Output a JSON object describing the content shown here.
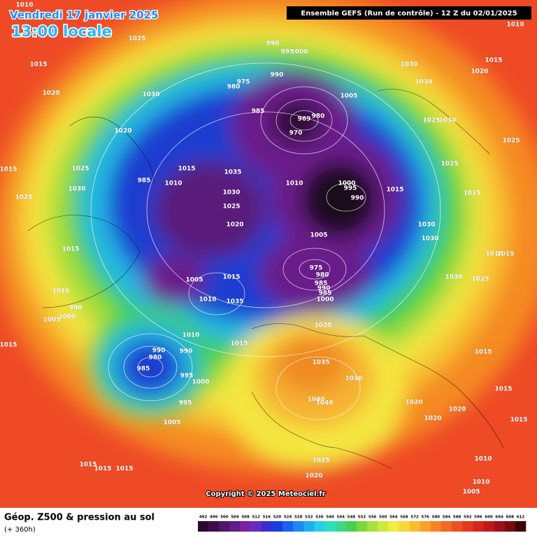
{
  "header": {
    "date": "Vendredi 17 janvier 2025",
    "time": "13:00 locale",
    "run": "Ensemble GEFS  (Run de contrôle)  -  12 Z du 02/01/2025"
  },
  "map": {
    "isobar_labels": [
      1010,
      1010,
      1025,
      1015,
      1020,
      1030,
      990,
      995,
      1000,
      1030,
      1015,
      1020,
      975,
      980,
      990,
      1030,
      1005,
      985,
      969,
      980,
      970,
      1025,
      1030,
      1020,
      1025,
      1015,
      1025,
      985,
      1010,
      1015,
      1035,
      1010,
      1000,
      995,
      990,
      1015,
      1025,
      1030,
      1030,
      1025,
      1025,
      1025,
      1030,
      1020,
      1030,
      1005,
      1010,
      1015,
      1015,
      975,
      980,
      1005,
      1015,
      1030,
      1025,
      985,
      990,
      1010,
      985,
      1000,
      1010,
      1035,
      990,
      1005,
      1000,
      1020,
      1010,
      1015,
      1015,
      990,
      990,
      1015,
      980,
      985,
      995,
      1035,
      1030,
      1000,
      1015,
      1040,
      1040,
      995,
      1020,
      1020,
      1020,
      1005,
      1015,
      1025,
      1015,
      1015,
      1015,
      1010,
      1020,
      1010,
      1005
    ],
    "copyright": "Copyright © 2025 Meteociel.fr"
  },
  "footer": {
    "title": "Géop. Z500 & pression au sol",
    "lead": "(+ 360h)"
  },
  "legend": {
    "values": [
      492,
      496,
      500,
      504,
      508,
      512,
      516,
      520,
      524,
      528,
      532,
      536,
      540,
      544,
      548,
      552,
      556,
      560,
      564,
      568,
      572,
      576,
      580,
      584,
      588,
      592,
      596,
      600,
      604,
      608,
      612
    ],
    "colors": [
      "#2a0a2e",
      "#3d0f4a",
      "#52166a",
      "#661c88",
      "#7a22a4",
      "#6a2cc0",
      "#3a2ed0",
      "#1a3ce0",
      "#1e60ee",
      "#1f88f2",
      "#20aef0",
      "#25cfe8",
      "#2fe0c0",
      "#3ad88a",
      "#48d050",
      "#7cd83a",
      "#a8e03a",
      "#d0e83a",
      "#f0ec40",
      "#f8d838",
      "#f8bc30",
      "#f8a028",
      "#f48424",
      "#f06a22",
      "#ec5020",
      "#e4381e",
      "#d6261c",
      "#c0181a",
      "#a01018",
      "#780a12",
      "#3a0606"
    ]
  }
}
